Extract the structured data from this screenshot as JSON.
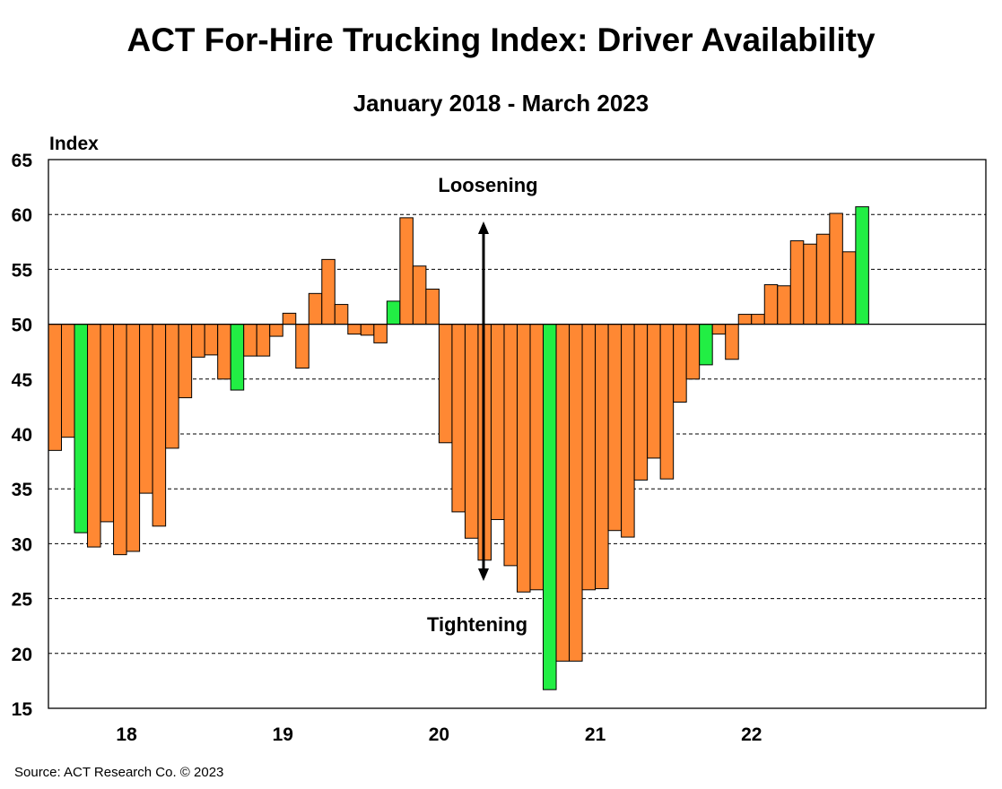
{
  "chart_data": {
    "type": "bar",
    "title": "ACT For-Hire Trucking Index: Driver Availability",
    "subtitle": "January 2018 - March 2023",
    "ylabel": "Index",
    "ylim": [
      15,
      65
    ],
    "baseline": 50,
    "y_ticks": [
      "65",
      "60",
      "55",
      "50",
      "45",
      "40",
      "35",
      "30",
      "25",
      "20",
      "15"
    ],
    "x_tick_labels": [
      {
        "label": "18",
        "month_index": 5.5
      },
      {
        "label": "19",
        "month_index": 17.5
      },
      {
        "label": "20",
        "month_index": 29.5
      },
      {
        "label": "21",
        "month_index": 41.5
      },
      {
        "label": "22",
        "month_index": 53.5
      }
    ],
    "months_on_axis": 72,
    "values": [
      38.5,
      39.7,
      31.0,
      29.7,
      32.0,
      29.0,
      29.3,
      34.6,
      31.6,
      38.7,
      43.3,
      47.0,
      47.2,
      45.0,
      44.0,
      47.1,
      47.1,
      48.9,
      51.0,
      46.0,
      52.8,
      55.9,
      51.8,
      49.1,
      49.0,
      48.3,
      52.1,
      59.7,
      55.3,
      53.2,
      39.2,
      32.9,
      30.5,
      28.5,
      32.2,
      28.0,
      25.6,
      25.8,
      16.7,
      19.3,
      19.3,
      25.8,
      25.9,
      31.2,
      30.6,
      35.8,
      37.8,
      35.9,
      42.9,
      45.0,
      46.3,
      49.1,
      46.8,
      50.9,
      50.9,
      53.6,
      53.5,
      57.6,
      57.3,
      58.2,
      60.1,
      56.6,
      60.7
    ],
    "highlight_indices": [
      2,
      14,
      26,
      38,
      50,
      62
    ],
    "colors": {
      "bar": "#ff8833",
      "highlight": "#22ee44",
      "outline": "#000000",
      "grid": "#000000"
    },
    "annotations": {
      "up": "Loosening",
      "down": "Tightening"
    },
    "grid": true
  },
  "source": "Source:  ACT Research  Co. © 2023"
}
